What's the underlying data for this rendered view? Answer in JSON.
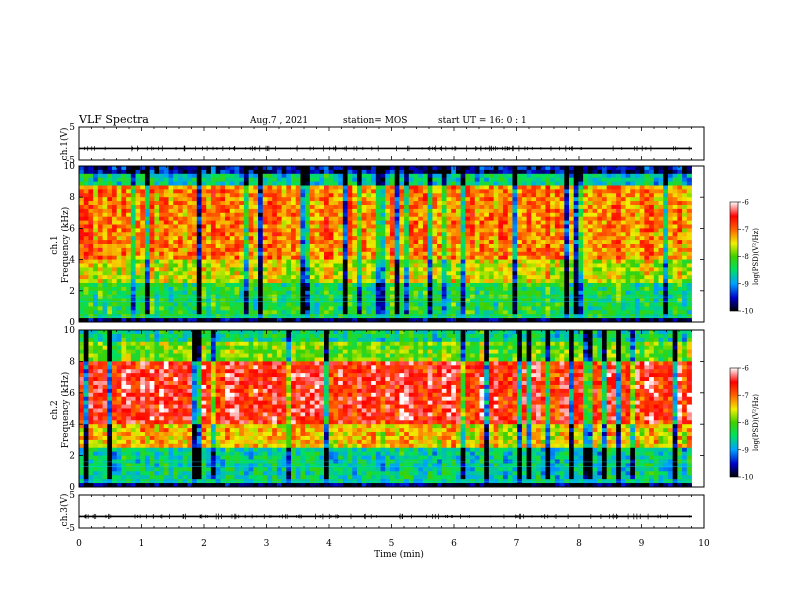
{
  "header": {
    "title": "VLF Spectra",
    "date": "Aug.7  , 2021",
    "station": "station= MOS",
    "start": "start  UT  =   16: 0  : 1"
  },
  "chart_data": [
    {
      "type": "line",
      "name": "ch1-waveform",
      "ylabel": "ch.1(V)",
      "ylim": [
        -5,
        5
      ],
      "yticks": [
        "5",
        "-5"
      ],
      "xlim": [
        0,
        10
      ],
      "level": -1.5
    },
    {
      "type": "heatmap",
      "name": "ch1-spectrogram",
      "ylabel": "ch.1\nFrequency  (kHz)",
      "ylim": [
        0,
        10
      ],
      "yticks": [
        "0",
        "2",
        "4",
        "6",
        "8",
        "10"
      ],
      "xlim": [
        0,
        9.8
      ],
      "colorbar": {
        "label": "log(PSD)(V²/Hz)",
        "ticks": [
          "-6",
          "-7",
          "-8",
          "-9",
          "-10"
        ],
        "range": [
          -10,
          -6
        ]
      },
      "bands": [
        {
          "from": 0,
          "to": 0.3,
          "level": -9.8
        },
        {
          "from": 0.3,
          "to": 2.5,
          "level": -8.3
        },
        {
          "from": 2.5,
          "to": 4,
          "level": -7.6
        },
        {
          "from": 4,
          "to": 8.8,
          "level": -7.1
        },
        {
          "from": 8.8,
          "to": 9.5,
          "level": -8.6
        },
        {
          "from": 9.5,
          "to": 10,
          "level": -9.6
        }
      ]
    },
    {
      "type": "heatmap",
      "name": "ch2-spectrogram",
      "ylabel": "ch.2\nFrequency  (kHz)",
      "ylim": [
        0,
        10
      ],
      "yticks": [
        "0",
        "2",
        "4",
        "6",
        "8",
        "10"
      ],
      "xlim": [
        0,
        9.8
      ],
      "colorbar": {
        "label": "log(PSD)(V²/Hz)",
        "ticks": [
          "-6",
          "-7",
          "-8",
          "-9",
          "-10"
        ],
        "range": [
          -10,
          -6
        ]
      },
      "bands": [
        {
          "from": 0,
          "to": 0.3,
          "level": -9.8
        },
        {
          "from": 0.3,
          "to": 2.5,
          "level": -8.6
        },
        {
          "from": 2.5,
          "to": 4,
          "level": -7.4
        },
        {
          "from": 4,
          "to": 8,
          "level": -6.6
        },
        {
          "from": 8,
          "to": 9.2,
          "level": -7.9
        },
        {
          "from": 9.2,
          "to": 10,
          "level": -8.5
        }
      ]
    },
    {
      "type": "line",
      "name": "ch3-waveform",
      "ylabel": "ch.3(V)",
      "ylim": [
        -5,
        5
      ],
      "yticks": [
        "5",
        "-5"
      ],
      "xlim": [
        0,
        10
      ],
      "level": -1.5
    }
  ],
  "xaxis": {
    "label": "Time  (min)",
    "range": [
      0,
      10
    ],
    "ticks": [
      "0",
      "1",
      "2",
      "3",
      "4",
      "5",
      "6",
      "7",
      "8",
      "9",
      "10"
    ]
  }
}
